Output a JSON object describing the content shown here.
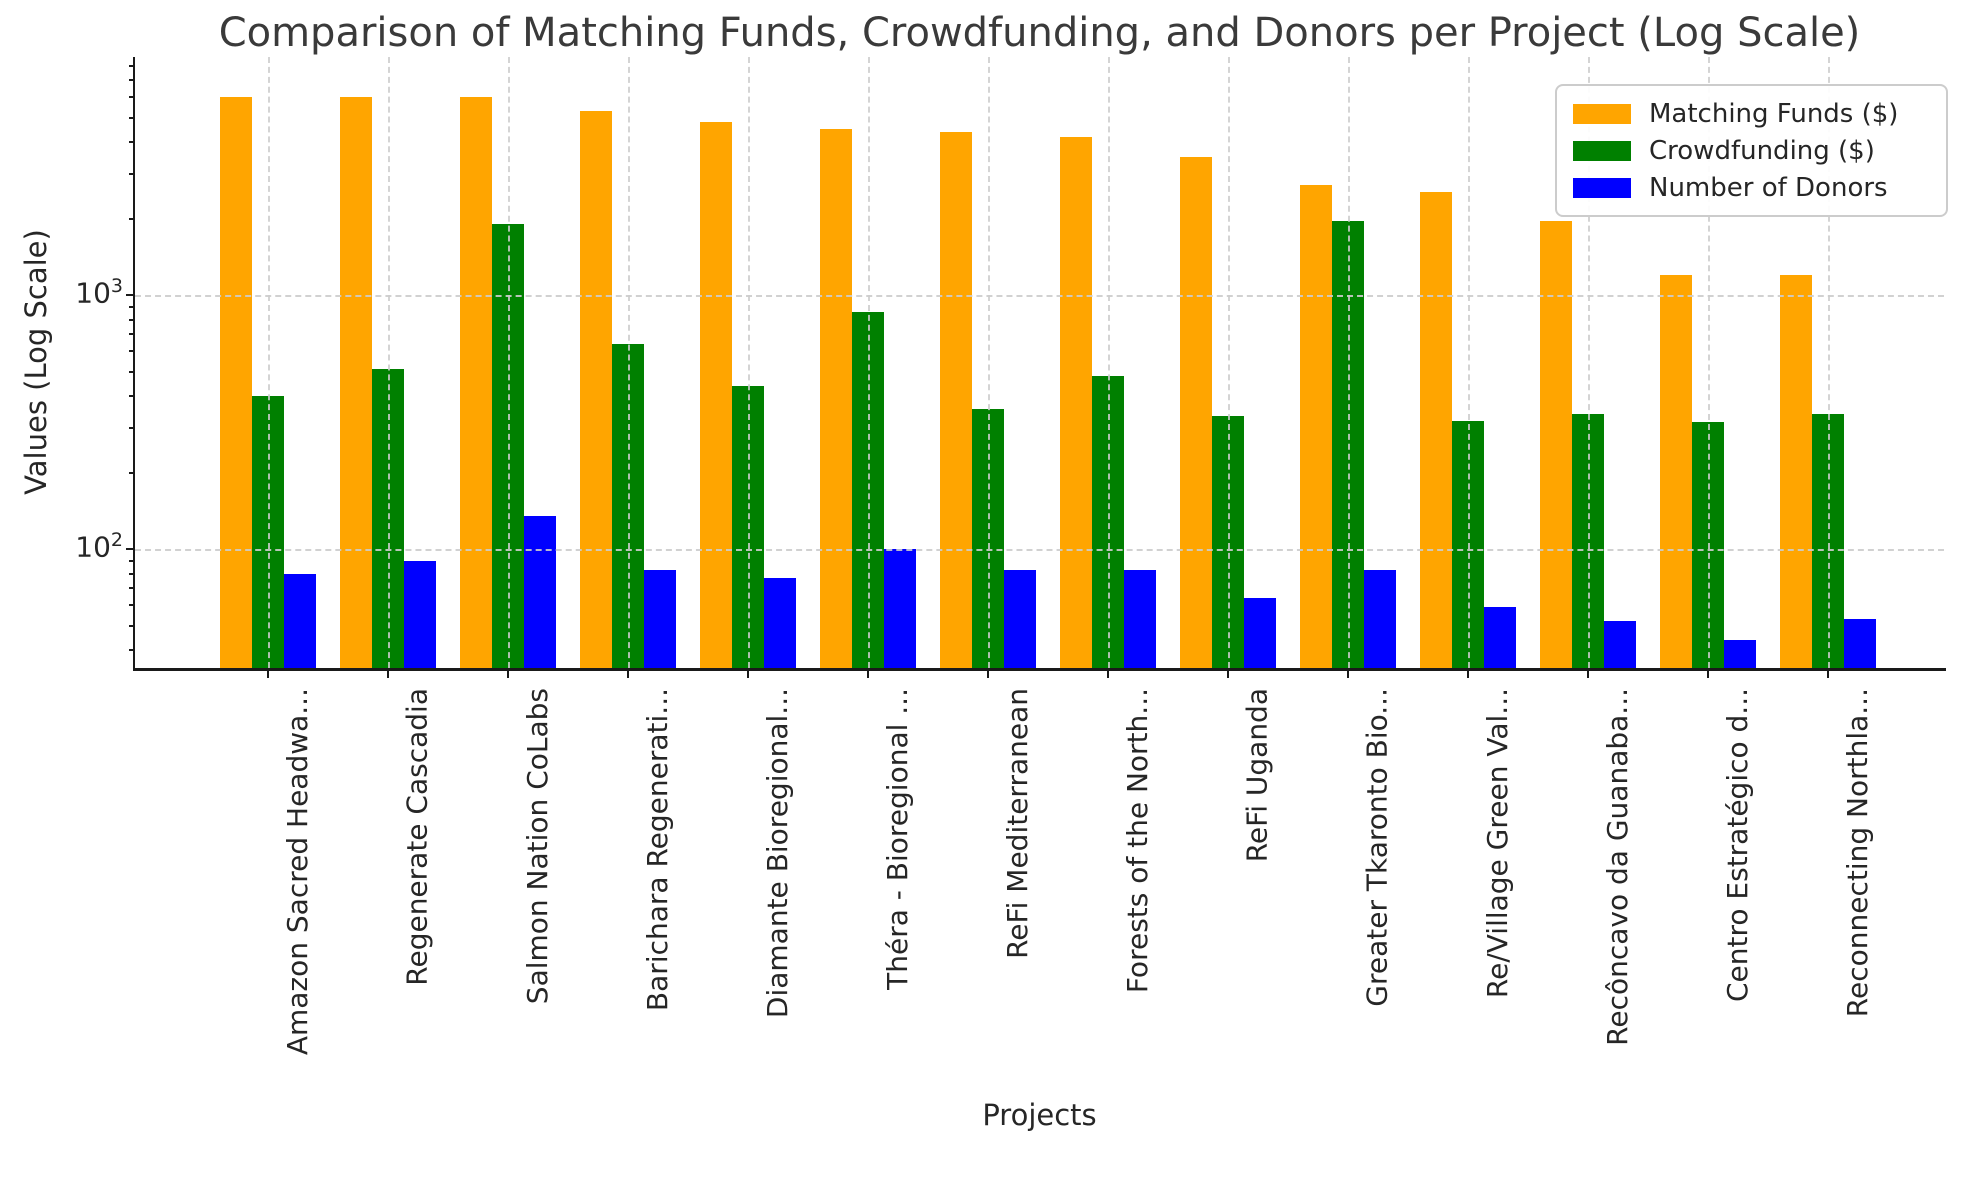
{
  "chart_data": {
    "type": "bar",
    "title": "Comparison of Matching Funds, Crowdfunding, and Donors per Project (Log Scale)",
    "xlabel": "Projects",
    "ylabel": "Values (Log Scale)",
    "yscale": "log",
    "ylim": [
      34,
      8700
    ],
    "grid": true,
    "legend_position": "upper right",
    "x_tick_rotation": 90,
    "categories": [
      "Amazon Sacred Headwa...",
      "Regenerate Cascadia",
      "Salmon Nation CoLabs",
      "Barichara Regenerati...",
      "Diamante Bioregional...",
      "Théra - Bioregional ...",
      "ReFi Mediterranean",
      "Forests of the North...",
      "ReFi Uganda",
      "Greater Tkaronto Bio...",
      "Re/Village Green Val...",
      "Recôncavo da Guanaba...",
      "Centro Estratégico d...",
      "Reconnecting Northla..."
    ],
    "series": [
      {
        "name": "Matching Funds ($)",
        "color": "#FFA500",
        "values": [
          6000,
          6000,
          6000,
          5300,
          4800,
          4500,
          4400,
          4200,
          3500,
          2700,
          2550,
          1950,
          1200,
          1200
        ]
      },
      {
        "name": "Crowdfunding ($)",
        "color": "#008000",
        "values": [
          400,
          510,
          1900,
          640,
          440,
          860,
          355,
          480,
          335,
          1950,
          320,
          340,
          315,
          340
        ]
      },
      {
        "name": "Number of Donors",
        "color": "#0000FF",
        "values": [
          80,
          90,
          135,
          83,
          77,
          100,
          83,
          83,
          64,
          83,
          59,
          52,
          44,
          53
        ]
      }
    ],
    "yticks": [
      {
        "mantissa": "10",
        "exponent": "3",
        "value": 1000
      },
      {
        "mantissa": "10",
        "exponent": "2",
        "value": 100
      }
    ]
  }
}
